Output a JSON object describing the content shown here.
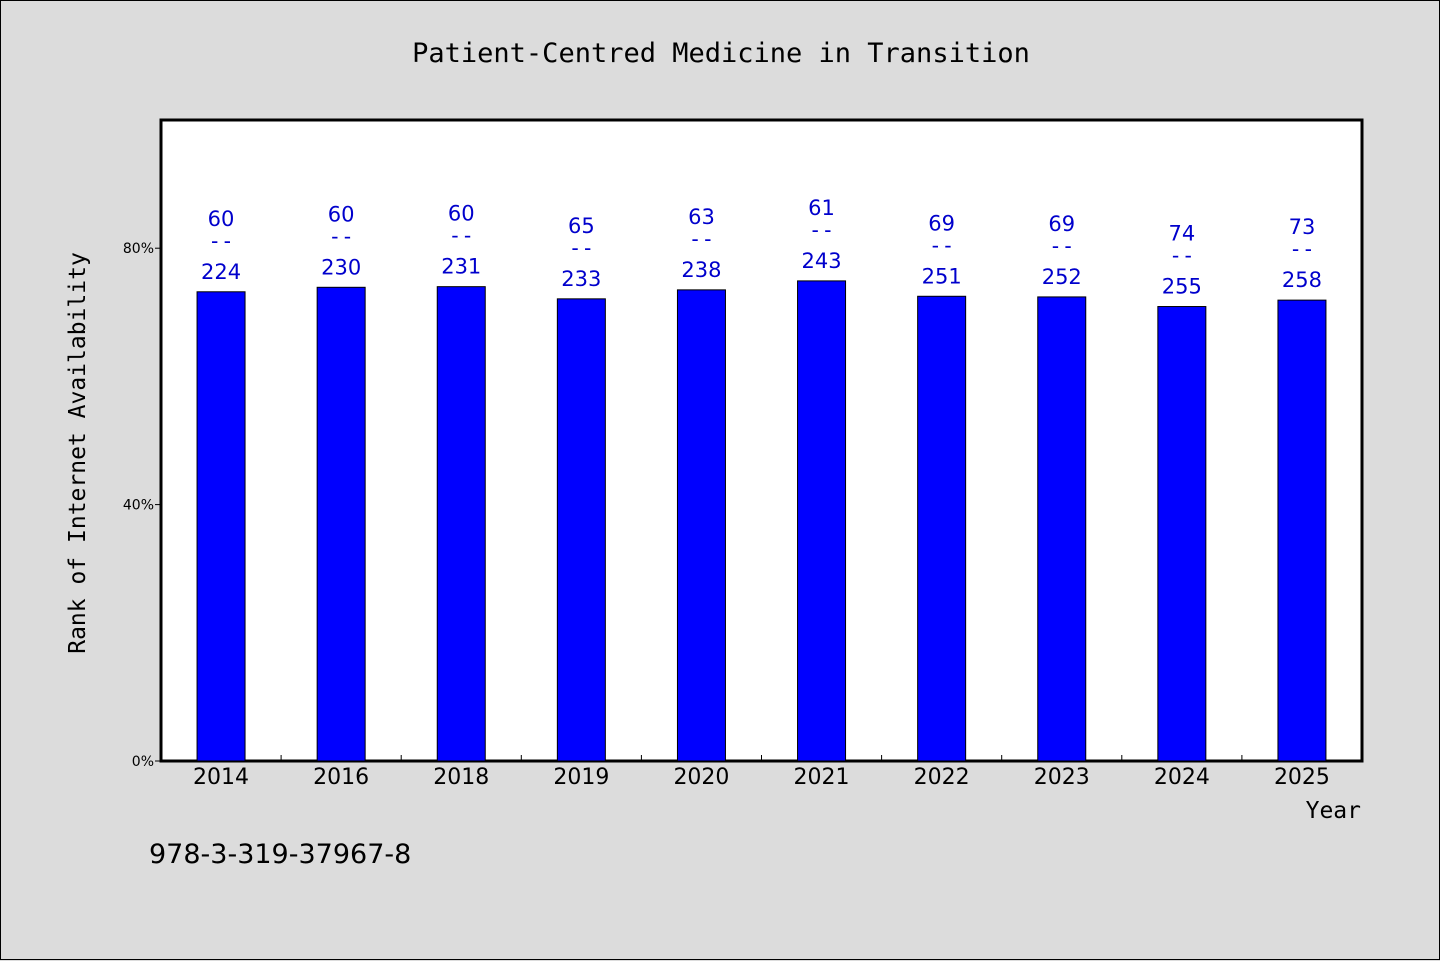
{
  "chart_data": {
    "type": "bar",
    "title": "Patient-Centred Medicine in Transition",
    "xlabel": "Year",
    "ylabel": "Rank of Internet Availability",
    "ylim": [
      0,
      100
    ],
    "yticks": [
      0,
      40,
      80
    ],
    "ytick_labels": [
      "0%",
      "40%",
      "80%"
    ],
    "grid": false,
    "categories": [
      "2014",
      "2016",
      "2018",
      "2019",
      "2020",
      "2021",
      "2022",
      "2023",
      "2024",
      "2025"
    ],
    "series": [
      {
        "values": [
          73.2,
          73.9,
          74.0,
          72.1,
          73.5,
          74.9,
          72.5,
          72.4,
          70.9,
          71.9
        ],
        "numerators": [
          "60",
          "60",
          "60",
          "65",
          "63",
          "61",
          "69",
          "69",
          "74",
          "73"
        ],
        "denominators": [
          "224",
          "230",
          "231",
          "233",
          "238",
          "243",
          "251",
          "252",
          "255",
          "258"
        ],
        "color": "#0000ff"
      }
    ],
    "label_separator": "--",
    "bar_color": "#0000ff",
    "label_color": "#0000cc",
    "background_color": "#dcdcdc",
    "plot_background_color": "#ffffff"
  },
  "footer": {
    "isbn": "978-3-319-37967-8"
  }
}
